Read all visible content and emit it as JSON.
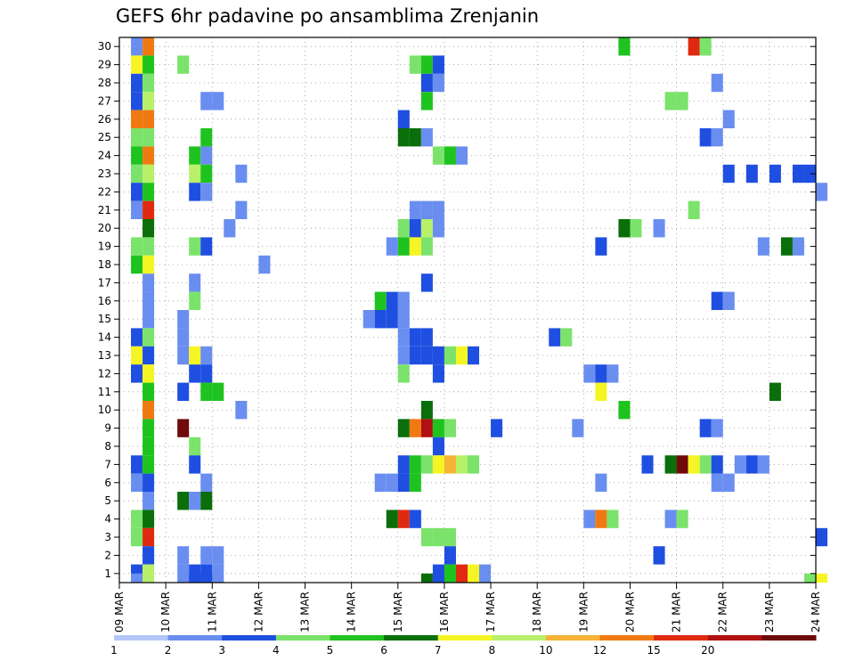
{
  "chart_data": {
    "type": "heatmap",
    "title": "GEFS 6hr padavine po ansamblima Zrenjanin",
    "xlabel": "",
    "ylabel": "",
    "x_ticks": [
      "09 MAR",
      "10 MAR",
      "11 MAR",
      "12 MAR",
      "13 MAR",
      "14 MAR",
      "15 MAR",
      "16 MAR",
      "17 MAR",
      "18 MAR",
      "19 MAR",
      "20 MAR",
      "21 MAR",
      "22 MAR",
      "23 MAR",
      "24 MAR"
    ],
    "y_ticks": [
      1,
      2,
      3,
      4,
      5,
      6,
      7,
      8,
      9,
      10,
      11,
      12,
      13,
      14,
      15,
      16,
      17,
      18,
      19,
      20,
      21,
      22,
      23,
      24,
      25,
      26,
      27,
      28,
      29,
      30
    ],
    "xlim_days": [
      0,
      15
    ],
    "ylim": [
      0.5,
      30.5
    ],
    "grid": true,
    "colorbar": {
      "boundaries": [
        1,
        2,
        3,
        4,
        5,
        6,
        7,
        8,
        10,
        12,
        15,
        20
      ],
      "labels": [
        "1",
        "2",
        "3",
        "4",
        "5",
        "6",
        "7",
        "8",
        "10",
        "12",
        "15",
        "20"
      ],
      "colors": [
        "#b3c6f7",
        "#6a8ef0",
        "#1f4fe0",
        "#7be36b",
        "#1fc31f",
        "#0a6e0a",
        "#f5f523",
        "#b8f06a",
        "#f5b436",
        "#f07a12",
        "#e02a10",
        "#b01010",
        "#6e0a0a"
      ]
    },
    "cell_width_days": 0.25,
    "cell_value_units": "mm / 6h",
    "cells": [
      [
        0.25,
        30,
        1
      ],
      [
        0.5,
        30,
        10
      ],
      [
        0.25,
        29,
        6
      ],
      [
        0.5,
        29,
        4
      ],
      [
        0.25,
        28,
        2
      ],
      [
        0.5,
        28,
        3
      ],
      [
        0.25,
        27,
        2
      ],
      [
        0.5,
        27,
        7
      ],
      [
        0.25,
        26,
        10
      ],
      [
        0.5,
        26,
        10
      ],
      [
        0.25,
        25,
        3
      ],
      [
        0.5,
        25,
        3
      ],
      [
        0.25,
        24,
        4
      ],
      [
        0.5,
        24,
        10
      ],
      [
        0.25,
        23,
        3
      ],
      [
        0.5,
        23,
        7
      ],
      [
        0.25,
        22,
        2
      ],
      [
        0.5,
        22,
        4
      ],
      [
        0.25,
        21,
        1
      ],
      [
        0.5,
        21,
        12
      ],
      [
        0.5,
        20,
        5
      ],
      [
        0.25,
        19,
        3
      ],
      [
        0.5,
        19,
        3
      ],
      [
        0.25,
        18,
        4
      ],
      [
        0.5,
        18,
        6
      ],
      [
        0.5,
        17,
        1
      ],
      [
        0.5,
        16,
        1
      ],
      [
        0.5,
        15,
        1
      ],
      [
        0.25,
        14,
        2
      ],
      [
        0.5,
        14,
        3
      ],
      [
        0.25,
        13,
        6
      ],
      [
        0.5,
        13,
        2
      ],
      [
        0.25,
        12,
        2
      ],
      [
        0.5,
        12,
        6
      ],
      [
        0.5,
        11,
        4
      ],
      [
        0.5,
        10,
        10
      ],
      [
        0.5,
        9,
        4
      ],
      [
        0.5,
        8,
        4
      ],
      [
        0.25,
        7,
        2
      ],
      [
        0.5,
        7,
        4
      ],
      [
        0.25,
        6,
        1
      ],
      [
        0.5,
        6,
        2
      ],
      [
        0.5,
        5,
        1
      ],
      [
        0.25,
        4,
        3
      ],
      [
        0.5,
        4,
        5
      ],
      [
        0.25,
        3,
        3
      ],
      [
        0.5,
        3,
        12
      ],
      [
        0.5,
        2,
        2
      ],
      [
        0.25,
        1,
        2
      ],
      [
        0.5,
        1,
        7
      ],
      [
        0.25,
        0.5,
        1
      ],
      [
        1.25,
        29,
        3
      ],
      [
        1.75,
        27,
        1
      ],
      [
        2,
        27,
        1
      ],
      [
        1.75,
        25,
        4
      ],
      [
        1.75,
        24,
        1
      ],
      [
        1.5,
        24,
        4
      ],
      [
        1.5,
        23,
        7
      ],
      [
        1.75,
        23,
        4
      ],
      [
        2.5,
        23,
        1
      ],
      [
        1.5,
        22,
        2
      ],
      [
        1.75,
        22,
        1
      ],
      [
        2.5,
        21,
        1
      ],
      [
        2.25,
        20,
        1
      ],
      [
        1.5,
        19,
        3
      ],
      [
        1.75,
        19,
        2
      ],
      [
        3,
        18,
        1
      ],
      [
        1.5,
        17,
        1
      ],
      [
        1.5,
        16,
        3
      ],
      [
        1.25,
        15,
        1
      ],
      [
        1.25,
        14,
        1
      ],
      [
        1.25,
        13,
        1
      ],
      [
        1.5,
        13,
        6
      ],
      [
        1.75,
        13,
        1
      ],
      [
        1.5,
        12,
        2
      ],
      [
        1.75,
        12,
        2
      ],
      [
        1.25,
        11,
        2
      ],
      [
        1.75,
        11,
        4
      ],
      [
        2,
        11,
        4
      ],
      [
        2.5,
        10,
        1
      ],
      [
        1.25,
        9,
        20
      ],
      [
        1.5,
        8,
        3
      ],
      [
        1.5,
        7,
        2
      ],
      [
        1.75,
        6,
        1
      ],
      [
        1.25,
        5,
        5
      ],
      [
        1.5,
        5,
        1
      ],
      [
        1.75,
        5,
        5
      ],
      [
        1.25,
        2,
        1
      ],
      [
        1.75,
        2,
        1
      ],
      [
        2,
        2,
        1
      ],
      [
        1.25,
        1,
        1
      ],
      [
        1.5,
        1,
        2
      ],
      [
        1.75,
        1,
        2
      ],
      [
        2,
        1,
        1
      ],
      [
        1.5,
        0.5,
        2
      ],
      [
        1.75,
        0.5,
        2
      ],
      [
        6.25,
        29,
        3
      ],
      [
        6.5,
        29,
        4
      ],
      [
        6.75,
        29,
        2
      ],
      [
        6.5,
        28,
        2
      ],
      [
        6.75,
        28,
        1
      ],
      [
        6.5,
        27,
        4
      ],
      [
        6,
        26,
        2
      ],
      [
        6,
        25,
        5
      ],
      [
        6.25,
        25,
        5
      ],
      [
        6.5,
        25,
        1
      ],
      [
        6.75,
        24,
        3
      ],
      [
        7,
        24,
        4
      ],
      [
        7.25,
        24,
        1
      ],
      [
        6.25,
        21,
        1
      ],
      [
        6.5,
        21,
        1
      ],
      [
        6.75,
        21,
        1
      ],
      [
        6,
        20,
        3
      ],
      [
        6.25,
        20,
        2
      ],
      [
        6.5,
        20,
        7
      ],
      [
        6.75,
        20,
        1
      ],
      [
        5.75,
        19,
        1
      ],
      [
        6,
        19,
        4
      ],
      [
        6.25,
        19,
        6
      ],
      [
        6.5,
        19,
        3
      ],
      [
        5.5,
        16,
        4
      ],
      [
        5.75,
        16,
        2
      ],
      [
        6,
        16,
        1
      ],
      [
        6.5,
        17,
        2
      ],
      [
        5.25,
        15,
        1
      ],
      [
        5.5,
        15,
        2
      ],
      [
        5.75,
        15,
        2
      ],
      [
        6,
        15,
        1
      ],
      [
        6,
        14,
        1
      ],
      [
        6.25,
        14,
        2
      ],
      [
        6.5,
        14,
        2
      ],
      [
        6,
        13,
        1
      ],
      [
        6.25,
        13,
        2
      ],
      [
        6.5,
        13,
        2
      ],
      [
        6.75,
        13,
        2
      ],
      [
        7,
        13,
        3
      ],
      [
        7.25,
        13,
        6
      ],
      [
        7.5,
        13,
        2
      ],
      [
        6,
        12,
        3
      ],
      [
        6.75,
        12,
        2
      ],
      [
        6.5,
        10,
        5
      ],
      [
        6,
        9,
        5
      ],
      [
        6.25,
        9,
        10
      ],
      [
        6.5,
        9,
        15
      ],
      [
        6.75,
        9,
        4
      ],
      [
        7,
        9,
        3
      ],
      [
        8,
        9,
        2
      ],
      [
        6.75,
        8,
        2
      ],
      [
        6,
        7,
        2
      ],
      [
        6.25,
        7,
        4
      ],
      [
        6.5,
        7,
        3
      ],
      [
        6.75,
        7,
        6
      ],
      [
        7,
        7,
        8
      ],
      [
        7.25,
        7,
        7
      ],
      [
        7.5,
        7,
        3
      ],
      [
        5.5,
        6,
        1
      ],
      [
        5.75,
        6,
        1
      ],
      [
        6,
        6,
        2
      ],
      [
        6.25,
        6,
        4
      ],
      [
        5.75,
        4,
        5
      ],
      [
        6,
        4,
        12
      ],
      [
        6.25,
        4,
        2
      ],
      [
        6.5,
        3,
        3
      ],
      [
        6.75,
        3,
        3
      ],
      [
        7,
        3,
        3
      ],
      [
        7,
        2,
        2
      ],
      [
        6.75,
        1,
        2
      ],
      [
        7,
        1,
        4
      ],
      [
        7.25,
        1,
        12
      ],
      [
        7.5,
        1,
        6
      ],
      [
        7.75,
        1,
        1
      ],
      [
        6.75,
        0.5,
        2
      ],
      [
        6.5,
        0.5,
        5
      ],
      [
        10.75,
        30,
        4
      ],
      [
        12.25,
        30,
        12
      ],
      [
        12.5,
        30,
        3
      ],
      [
        12.75,
        28,
        1
      ],
      [
        11.75,
        27,
        3
      ],
      [
        12,
        27,
        3
      ],
      [
        13,
        26,
        1
      ],
      [
        12.5,
        25,
        2
      ],
      [
        12.75,
        25,
        1
      ],
      [
        13,
        23,
        2
      ],
      [
        13.5,
        23,
        2
      ],
      [
        14,
        23,
        2
      ],
      [
        14.5,
        23,
        2
      ],
      [
        14.75,
        23,
        2
      ],
      [
        15,
        22,
        1
      ],
      [
        12.25,
        21,
        3
      ],
      [
        10.75,
        20,
        5
      ],
      [
        11,
        20,
        3
      ],
      [
        11.5,
        20,
        1
      ],
      [
        10.25,
        19,
        2
      ],
      [
        13.75,
        19,
        1
      ],
      [
        14.25,
        19,
        5
      ],
      [
        14.5,
        19,
        1
      ],
      [
        12.75,
        16,
        2
      ],
      [
        13,
        16,
        1
      ],
      [
        9.25,
        14,
        2
      ],
      [
        9.5,
        14,
        3
      ],
      [
        10,
        12,
        1
      ],
      [
        10.25,
        12,
        2
      ],
      [
        10.5,
        12,
        1
      ],
      [
        10.25,
        11,
        6
      ],
      [
        14,
        11,
        5
      ],
      [
        10.75,
        10,
        4
      ],
      [
        9.75,
        9,
        1
      ],
      [
        12.5,
        9,
        2
      ],
      [
        12.75,
        9,
        1
      ],
      [
        11.25,
        7,
        2
      ],
      [
        11.75,
        7,
        5
      ],
      [
        12,
        7,
        20
      ],
      [
        12.25,
        7,
        6
      ],
      [
        12.5,
        7,
        3
      ],
      [
        12.75,
        7,
        2
      ],
      [
        13.25,
        7,
        1
      ],
      [
        13.5,
        7,
        2
      ],
      [
        13.75,
        7,
        1
      ],
      [
        10.25,
        6,
        1
      ],
      [
        12.75,
        6,
        1
      ],
      [
        13,
        6,
        1
      ],
      [
        10,
        4,
        1
      ],
      [
        10.25,
        4,
        10
      ],
      [
        10.5,
        4,
        3
      ],
      [
        11.75,
        4,
        1
      ],
      [
        12,
        4,
        3
      ],
      [
        15,
        3,
        2
      ],
      [
        11.5,
        2,
        2
      ],
      [
        14.75,
        0.5,
        3
      ],
      [
        15,
        0.5,
        6
      ]
    ]
  }
}
